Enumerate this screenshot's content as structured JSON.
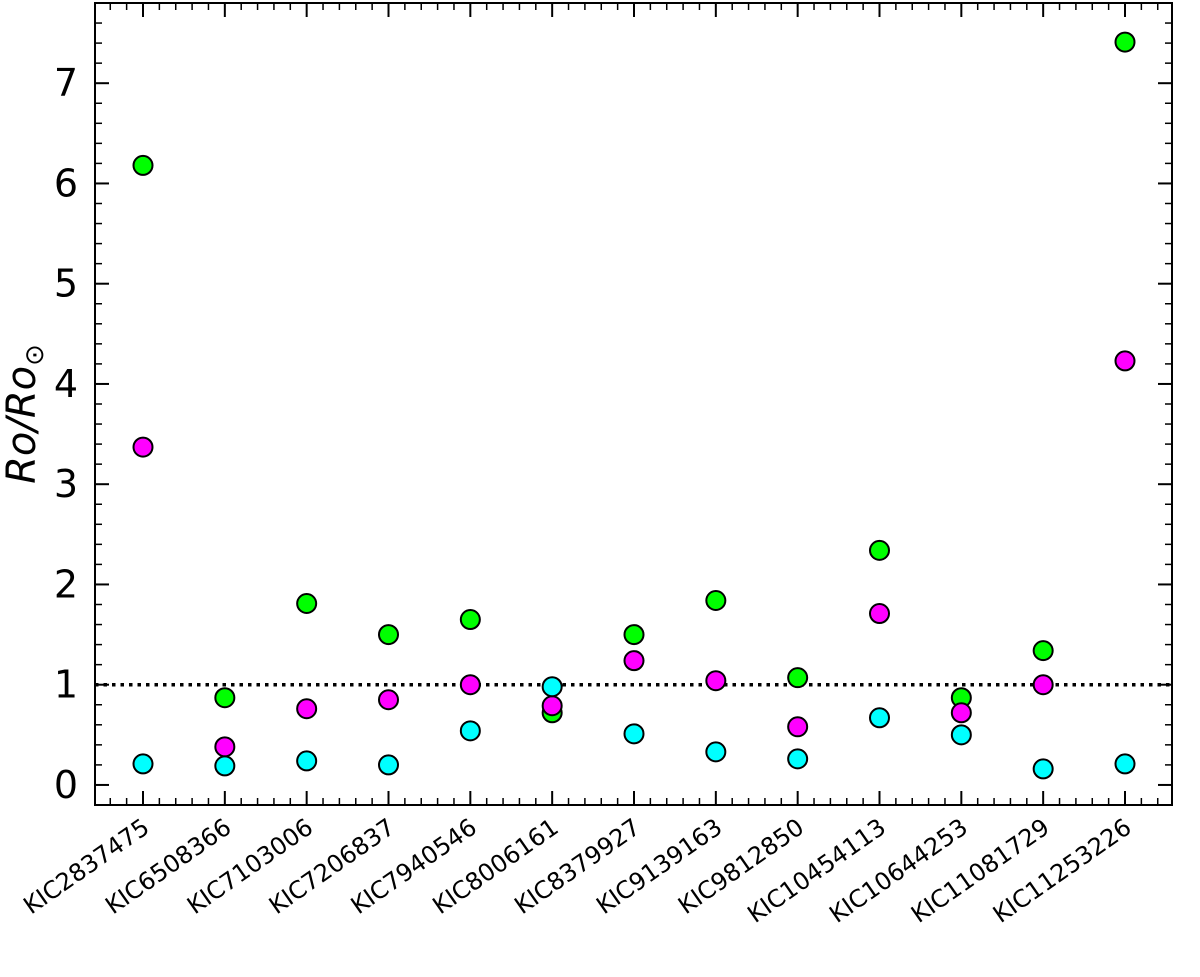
{
  "chart_data": {
    "type": "scatter",
    "title": "",
    "xlabel": "",
    "ylabel": {
      "text": "Ro/Ro",
      "subscript": "⊙"
    },
    "ylim": [
      -0.2,
      7.8
    ],
    "yticks": [
      0,
      1,
      2,
      3,
      4,
      5,
      6,
      7
    ],
    "yminor_step": 0.2,
    "categories": [
      "KIC2837475",
      "KIC6508366",
      "KIC7103006",
      "KIC7206837",
      "KIC7940546",
      "KIC8006161",
      "KIC8379927",
      "KIC9139163",
      "KIC9812850",
      "KIC10454113",
      "KIC10644253",
      "KIC11081729",
      "KIC11253226"
    ],
    "reference_line": {
      "y": 1,
      "style": "dotted",
      "color": "#000000"
    },
    "grid": false,
    "legend": "none",
    "series": [
      {
        "color": "#00ff00",
        "values": [
          6.18,
          0.87,
          1.81,
          1.5,
          1.65,
          0.72,
          1.5,
          1.84,
          1.07,
          2.34,
          0.87,
          1.34,
          7.41
        ]
      },
      {
        "color": "#ff00ff",
        "values": [
          3.37,
          0.38,
          0.76,
          0.85,
          1.0,
          0.79,
          1.24,
          1.04,
          0.58,
          1.71,
          0.72,
          1.0,
          4.23
        ]
      },
      {
        "color": "#00ffff",
        "values": [
          0.21,
          0.19,
          0.24,
          0.2,
          0.54,
          0.98,
          0.51,
          0.33,
          0.26,
          0.67,
          0.5,
          0.16,
          0.21
        ]
      }
    ]
  }
}
